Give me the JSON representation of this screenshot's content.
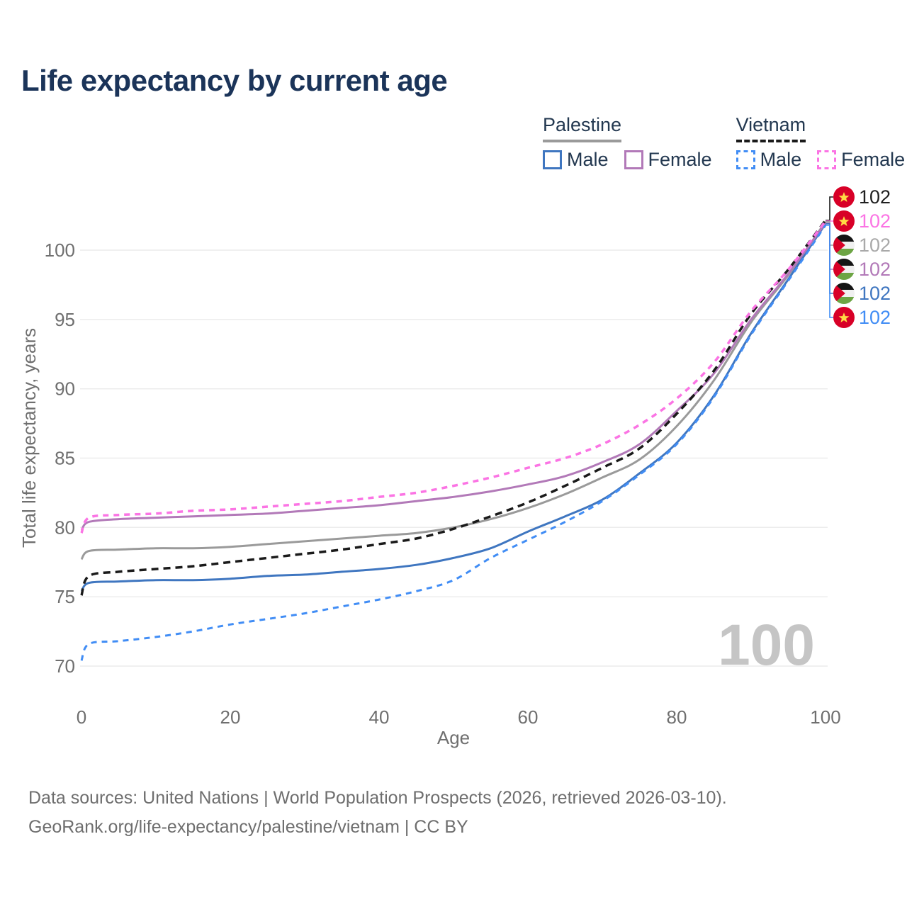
{
  "title": "Life expectancy by current age",
  "legend": {
    "groups": [
      {
        "name": "Palestine",
        "line_style": "solid",
        "line_color": "#9a9a9a",
        "items": [
          {
            "label": "Male",
            "color": "#3f76c0",
            "style": "solid"
          },
          {
            "label": "Female",
            "color": "#b279b8",
            "style": "solid"
          }
        ]
      },
      {
        "name": "Vietnam",
        "line_style": "dashed",
        "line_color": "#1a1a1a",
        "items": [
          {
            "label": "Male",
            "color": "#418df5",
            "style": "dashed"
          },
          {
            "label": "Female",
            "color": "#fb74e4",
            "style": "dashed"
          }
        ]
      }
    ]
  },
  "chart_data": {
    "type": "line",
    "title": "Life expectancy by current age",
    "xlabel": "Age",
    "ylabel": "Total life expectancy, years",
    "xticks": [
      0,
      20,
      40,
      60,
      80,
      100
    ],
    "yticks": [
      70,
      75,
      80,
      85,
      90,
      95,
      100
    ],
    "xlim": [
      0,
      100
    ],
    "ylim": [
      69.5,
      103
    ],
    "grid": "horizontal",
    "legend_position": "top-right",
    "age_counter": "100",
    "x": [
      0,
      1,
      5,
      10,
      15,
      20,
      25,
      30,
      35,
      40,
      45,
      50,
      55,
      60,
      65,
      70,
      75,
      80,
      85,
      90,
      95,
      100
    ],
    "series": [
      {
        "key": "palestine_total",
        "name": "Palestine Total",
        "country": "Palestine",
        "sex": "both",
        "style": "solid",
        "color": "#9a9a9a",
        "width": 3,
        "values": [
          77.7,
          78.3,
          78.4,
          78.5,
          78.5,
          78.6,
          78.8,
          79.0,
          79.2,
          79.4,
          79.6,
          80.0,
          80.6,
          81.4,
          82.4,
          83.6,
          84.9,
          87.3,
          90.6,
          94.8,
          98.2,
          102.05
        ]
      },
      {
        "key": "palestine_male",
        "name": "Palestine Male",
        "country": "Palestine",
        "sex": "male",
        "style": "solid",
        "color": "#3f76c0",
        "width": 3,
        "values": [
          75.4,
          76.0,
          76.1,
          76.2,
          76.2,
          76.3,
          76.5,
          76.6,
          76.8,
          77.0,
          77.3,
          77.8,
          78.5,
          79.7,
          80.8,
          82.0,
          83.9,
          86.1,
          89.5,
          94.0,
          97.9,
          101.9
        ]
      },
      {
        "key": "palestine_female",
        "name": "Palestine Female",
        "country": "Palestine",
        "sex": "female",
        "style": "solid",
        "color": "#b279b8",
        "width": 3,
        "values": [
          79.8,
          80.4,
          80.6,
          80.7,
          80.8,
          80.9,
          81.0,
          81.2,
          81.4,
          81.6,
          81.9,
          82.2,
          82.6,
          83.1,
          83.7,
          84.7,
          86.0,
          88.4,
          91.1,
          95.0,
          98.3,
          101.95
        ]
      },
      {
        "key": "vietnam_total",
        "name": "Vietnam Total",
        "country": "Vietnam",
        "sex": "both",
        "style": "dashed",
        "color": "#1a1a1a",
        "width": 3.5,
        "dash": "10 7",
        "values": [
          75.1,
          76.5,
          76.8,
          77.0,
          77.2,
          77.5,
          77.8,
          78.1,
          78.4,
          78.8,
          79.2,
          79.9,
          80.8,
          81.8,
          83.0,
          84.3,
          85.7,
          88.2,
          91.3,
          95.4,
          98.6,
          102.15
        ]
      },
      {
        "key": "vietnam_male",
        "name": "Vietnam Male",
        "country": "Vietnam",
        "sex": "male",
        "style": "dashed",
        "color": "#418df5",
        "width": 3,
        "dash": "8 7",
        "values": [
          70.4,
          71.6,
          71.8,
          72.1,
          72.5,
          73.0,
          73.4,
          73.8,
          74.3,
          74.8,
          75.4,
          76.2,
          77.8,
          79.1,
          80.4,
          81.9,
          83.8,
          86.0,
          89.4,
          93.9,
          97.8,
          101.8
        ]
      },
      {
        "key": "vietnam_female",
        "name": "Vietnam Female",
        "country": "Vietnam",
        "sex": "female",
        "style": "dashed",
        "color": "#fb74e4",
        "width": 3.5,
        "dash": "8 7",
        "values": [
          79.6,
          80.7,
          80.9,
          81.0,
          81.2,
          81.3,
          81.5,
          81.7,
          81.9,
          82.2,
          82.5,
          83.0,
          83.6,
          84.3,
          85.0,
          86.0,
          87.4,
          89.3,
          91.9,
          95.6,
          98.6,
          102.1
        ]
      }
    ],
    "end_labels": [
      {
        "series": "vietnam_total",
        "flag": "vietnam",
        "value": "102",
        "color": "#1f1f1f"
      },
      {
        "series": "vietnam_female",
        "flag": "vietnam",
        "value": "102",
        "color": "#fb74e4"
      },
      {
        "series": "palestine_total",
        "flag": "palestine",
        "value": "102",
        "color": "#a9a9a9"
      },
      {
        "series": "palestine_female",
        "flag": "palestine",
        "value": "102",
        "color": "#b279b8"
      },
      {
        "series": "palestine_male",
        "flag": "palestine",
        "value": "102",
        "color": "#3f76c0"
      },
      {
        "series": "vietnam_male",
        "flag": "vietnam",
        "value": "102",
        "color": "#418df5"
      }
    ],
    "flag_colors": {
      "vietnam_red": "#d80027",
      "vietnam_star": "#ffda44",
      "palestine_black": "#151515",
      "palestine_white": "#f0f0f0",
      "palestine_green": "#6da544",
      "palestine_red": "#d80027"
    }
  },
  "footer": {
    "line1": "Data sources: United Nations | World Population Prospects (2026, retrieved 2026-03-10).",
    "line2": "GeoRank.org/life-expectancy/palestine/vietnam | CC BY"
  }
}
